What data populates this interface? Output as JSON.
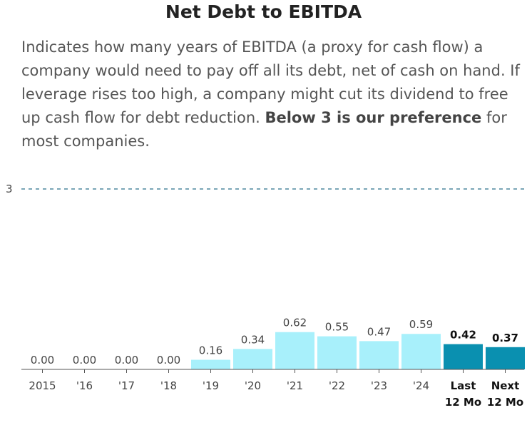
{
  "chart_data": {
    "type": "bar",
    "title": "Net Debt to EBITDA",
    "subtitle": [
      "Indicates how many years of EBITDA (a proxy for cash flow) a company would need to pay off all its debt, net of cash on hand. If leverage rises too high, a company might cut its dividend to free up cash flow for debt reduction. ",
      "Below 3 is our preference",
      " for most companies."
    ],
    "categories": [
      "2015",
      "'16",
      "'17",
      "'18",
      "'19",
      "'20",
      "'21",
      "'22",
      "'23",
      "'24",
      "Last 12 Mo",
      "Next 12 Mo"
    ],
    "values": [
      0,
      0,
      0,
      0,
      0.16,
      0.34,
      0.62,
      0.55,
      0.47,
      0.59,
      0.42,
      0.37
    ],
    "value_labels": [
      "0.00",
      "0.00",
      "0.00",
      "0.00",
      "0.16",
      "0.34",
      "0.62",
      "0.55",
      "0.47",
      "0.59",
      "0.42",
      "0.37"
    ],
    "colors": [
      "#a8f0fb",
      "#a8f0fb",
      "#a8f0fb",
      "#a8f0fb",
      "#a8f0fb",
      "#a8f0fb",
      "#a8f0fb",
      "#a8f0fb",
      "#a8f0fb",
      "#a8f0fb",
      "#0a90b0",
      "#0a90b0"
    ],
    "ylim": [
      0,
      3
    ],
    "yticks": [
      3
    ],
    "grid": true
  }
}
